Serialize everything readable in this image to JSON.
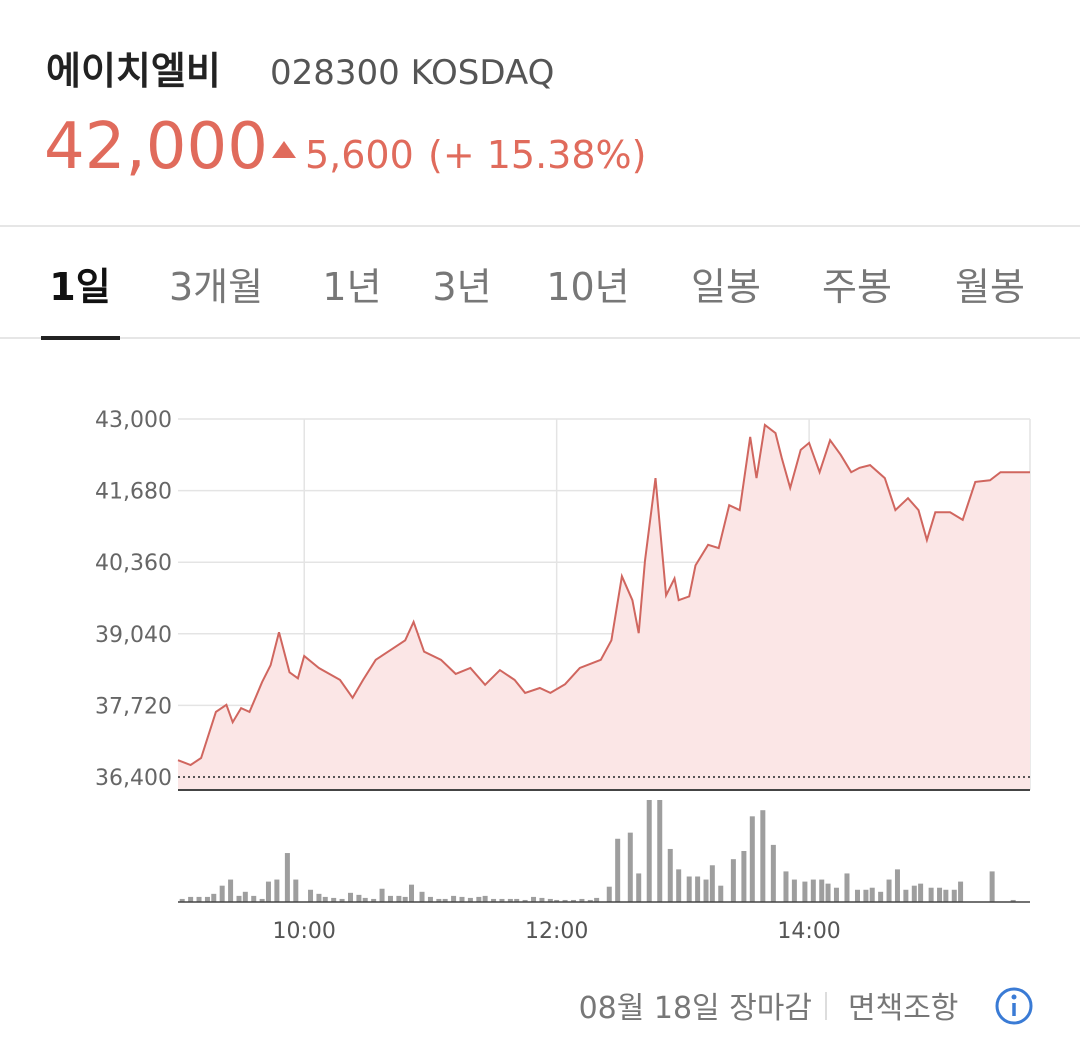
{
  "header": {
    "name": "에이치엘비",
    "code": "028300 KOSDAQ",
    "price": "42,000",
    "change": "5,600",
    "change_pct": "(+ 15.38%)"
  },
  "tabs": [
    "1일",
    "3개월",
    "1년",
    "3년",
    "10년",
    "일봉",
    "주봉",
    "월봉"
  ],
  "chart_data": [
    {
      "type": "area",
      "color": "#d0665f",
      "fill": "#fbe6e6",
      "grid": true,
      "reference_line": 36400,
      "x": [
        540,
        546,
        551,
        558,
        563,
        566,
        570,
        574,
        580,
        584,
        588,
        593,
        597,
        600,
        607,
        617,
        623,
        628,
        634,
        641,
        648,
        652,
        657,
        665,
        672,
        679,
        686,
        693,
        700,
        705,
        712,
        717,
        724,
        731,
        741,
        746,
        751,
        756,
        759,
        762,
        767,
        772,
        776,
        778,
        783,
        786,
        792,
        797,
        802,
        807,
        812,
        815,
        819,
        824,
        827,
        831,
        836,
        840,
        845,
        850,
        855,
        860,
        864,
        869,
        876,
        881,
        887,
        892,
        896,
        900,
        907,
        913,
        919,
        926,
        931,
        945
      ],
      "values": [
        36710,
        36620,
        36750,
        37600,
        37730,
        37410,
        37670,
        37600,
        38150,
        38460,
        39070,
        38330,
        38220,
        38630,
        38410,
        38190,
        37860,
        38190,
        38560,
        38740,
        38920,
        39260,
        38710,
        38560,
        38300,
        38410,
        38100,
        38370,
        38190,
        37950,
        38040,
        37950,
        38110,
        38410,
        38560,
        38920,
        40100,
        39660,
        39050,
        40390,
        41910,
        39750,
        40060,
        39660,
        39730,
        40300,
        40680,
        40620,
        41410,
        41320,
        42670,
        41910,
        42890,
        42740,
        42280,
        41730,
        42430,
        42560,
        42020,
        42610,
        42340,
        42020,
        42100,
        42150,
        41910,
        41320,
        41540,
        41320,
        40770,
        41280,
        41280,
        41140,
        41840,
        41870,
        42020,
        42020
      ],
      "xlim": [
        540,
        945
      ],
      "ylim": [
        36160,
        43000
      ],
      "xticks": [
        {
          "value": 600,
          "label": "10:00"
        },
        {
          "value": 720,
          "label": "12:00"
        },
        {
          "value": 840,
          "label": "14:00"
        }
      ],
      "yticks": [
        {
          "value": 36400,
          "label": "36,400"
        },
        {
          "value": 37720,
          "label": "37,720"
        },
        {
          "value": 39040,
          "label": "39,040"
        },
        {
          "value": 40360,
          "label": "40,360"
        },
        {
          "value": 41680,
          "label": "41,680"
        },
        {
          "value": 43000,
          "label": "43,000"
        }
      ]
    },
    {
      "type": "bar",
      "color": "#9e9e9e",
      "x": [
        542,
        546,
        550,
        554,
        557,
        561,
        565,
        569,
        572,
        576,
        580,
        583,
        587,
        592,
        596,
        603,
        607,
        610,
        614,
        618,
        622,
        626,
        629,
        633,
        637,
        641,
        645,
        648,
        651,
        656,
        660,
        664,
        667,
        671,
        675,
        679,
        683,
        686,
        690,
        694,
        698,
        701,
        705,
        709,
        713,
        717,
        720,
        724,
        728,
        732,
        736,
        739,
        745,
        749,
        755,
        759,
        764,
        769,
        774,
        778,
        783,
        787,
        791,
        794,
        798,
        804,
        809,
        813,
        818,
        823,
        829,
        833,
        838,
        842,
        846,
        849,
        853,
        858,
        863,
        867,
        870,
        874,
        878,
        882,
        886,
        890,
        893,
        898,
        902,
        905,
        909,
        912,
        927,
        937
      ],
      "values": [
        3,
        5,
        5,
        5,
        8,
        16,
        22,
        6,
        10,
        6,
        3,
        20,
        22,
        48,
        22,
        12,
        8,
        5,
        4,
        3,
        9,
        7,
        4,
        3,
        13,
        6,
        6,
        5,
        17,
        10,
        5,
        3,
        3,
        6,
        5,
        4,
        5,
        6,
        3,
        3,
        3,
        3,
        2,
        5,
        4,
        3,
        2,
        2,
        2,
        3,
        2,
        4,
        15,
        62,
        68,
        28,
        100,
        100,
        52,
        32,
        25,
        25,
        22,
        36,
        16,
        42,
        50,
        84,
        90,
        56,
        30,
        22,
        20,
        22,
        22,
        18,
        14,
        28,
        12,
        12,
        14,
        10,
        22,
        32,
        12,
        16,
        18,
        14,
        14,
        12,
        12,
        20,
        30,
        2
      ],
      "xlim": [
        540,
        945
      ],
      "ylim": [
        0,
        100
      ]
    }
  ],
  "footer": {
    "status": "08월 18일 장마감",
    "disclaimer": "면책조항"
  }
}
